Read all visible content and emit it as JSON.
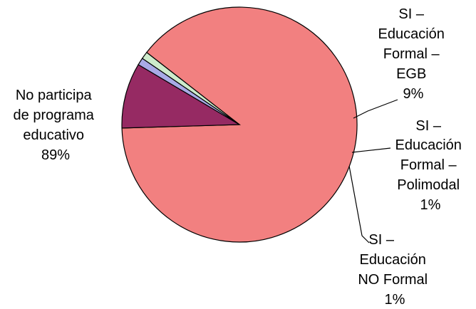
{
  "chart_data": {
    "type": "pie",
    "title": "",
    "slices": [
      {
        "name": "No participa de programa educativo",
        "value": 89,
        "pct_label": "89%",
        "color": "#F28080",
        "label_lines": [
          "No participa",
          "de programa",
          "educativo"
        ]
      },
      {
        "name": "SI – Educación Formal – EGB",
        "value": 9,
        "pct_label": "9%",
        "color": "#962A63",
        "label_lines": [
          "SI –",
          "Educación",
          "Formal –",
          "EGB"
        ]
      },
      {
        "name": "SI – Educación Formal – Polimodal",
        "value": 1,
        "pct_label": "1%",
        "color": "#A9AAE6",
        "label_lines": [
          "SI –",
          "Educación",
          "Formal –",
          "Polimodal"
        ]
      },
      {
        "name": "SI – Educación NO Formal",
        "value": 1,
        "pct_label": "1%",
        "color": "#CDEBCB",
        "label_lines": [
          "SI –",
          "Educación",
          "NO Formal"
        ]
      }
    ]
  }
}
